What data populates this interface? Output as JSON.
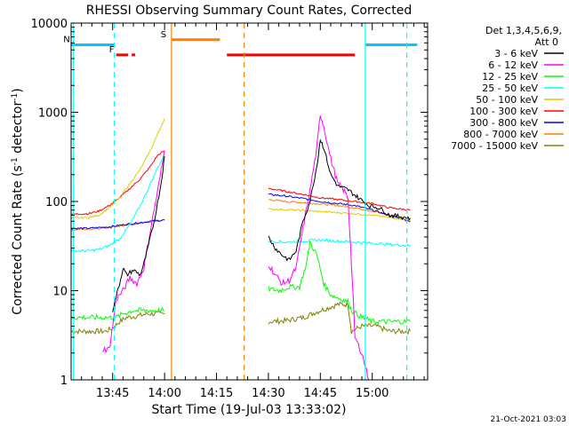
{
  "chart_data": {
    "type": "line",
    "title": "RHESSI Observing Summary Count Rates, Corrected",
    "xlabel": "Start Time (19-Jul-03 13:33:02)",
    "ylabel": "Corrected Count Rate (s",
    "ylabel_sup1": "-1",
    "ylabel_mid": " detector",
    "ylabel_sup2": "-1",
    "ylabel_end": ")",
    "yscale": "log",
    "ylim": [
      1,
      10000
    ],
    "xlim_minutes": [
      0,
      103
    ],
    "x_ticks": [
      {
        "label": "13:45",
        "minute": 12
      },
      {
        "label": "14:00",
        "minute": 27
      },
      {
        "label": "14:15",
        "minute": 42
      },
      {
        "label": "14:30",
        "minute": 57
      },
      {
        "label": "14:45",
        "minute": 72
      },
      {
        "label": "15:00",
        "minute": 87
      }
    ],
    "y_ticks": [
      {
        "label": "1",
        "value": 1
      },
      {
        "label": "10",
        "value": 10
      },
      {
        "label": "100",
        "value": 100
      },
      {
        "label": "1000",
        "value": 1000
      },
      {
        "label": "10000",
        "value": 10000
      }
    ],
    "legend": {
      "header1": "Det 1,3,4,5,6,9,",
      "header2": "Att 0",
      "position": "top-right"
    },
    "series": [
      {
        "name": "3 - 6 keV",
        "color": "#000000",
        "seg1": [
          [
            12,
            6
          ],
          [
            14,
            12
          ],
          [
            15,
            18
          ],
          [
            16,
            15
          ],
          [
            18,
            17
          ],
          [
            20,
            15
          ],
          [
            21,
            20
          ],
          [
            22,
            28
          ],
          [
            24,
            60
          ],
          [
            26,
            160
          ],
          [
            27,
            320
          ]
        ],
        "seg2": [
          [
            57,
            40
          ],
          [
            59,
            30
          ],
          [
            61,
            25
          ],
          [
            63,
            22
          ],
          [
            65,
            28
          ],
          [
            67,
            60
          ],
          [
            69,
            100
          ],
          [
            71,
            250
          ],
          [
            72,
            500
          ],
          [
            73,
            400
          ],
          [
            75,
            200
          ],
          [
            77,
            150
          ],
          [
            79,
            140
          ],
          [
            80,
            135
          ],
          [
            83,
            110
          ],
          [
            86,
            90
          ],
          [
            89,
            85
          ],
          [
            92,
            70
          ],
          [
            95,
            68
          ],
          [
            98,
            65
          ]
        ]
      },
      {
        "name": "6 - 12 keV",
        "color": "#ff00ff",
        "seg1": [
          [
            9,
            2.2
          ],
          [
            11,
            2.2
          ],
          [
            12,
            4
          ],
          [
            13,
            8
          ],
          [
            15,
            10
          ],
          [
            17,
            14
          ],
          [
            19,
            12
          ],
          [
            21,
            18
          ],
          [
            23,
            50
          ],
          [
            25,
            130
          ],
          [
            27,
            370
          ]
        ],
        "seg2": [
          [
            57,
            20
          ],
          [
            59,
            15
          ],
          [
            61,
            12
          ],
          [
            63,
            13
          ],
          [
            65,
            18
          ],
          [
            67,
            50
          ],
          [
            69,
            130
          ],
          [
            71,
            400
          ],
          [
            72,
            950
          ],
          [
            73,
            700
          ],
          [
            75,
            300
          ],
          [
            77,
            160
          ],
          [
            79,
            130
          ],
          [
            80,
            110
          ],
          [
            81,
            20
          ],
          [
            82,
            3
          ],
          [
            84,
            2
          ],
          [
            86,
            1
          ]
        ]
      },
      {
        "name": "12 - 25 keV",
        "color": "#00ff00",
        "seg1": [
          [
            0,
            5
          ],
          [
            5,
            5
          ],
          [
            10,
            5
          ],
          [
            13,
            5
          ],
          [
            15,
            5.5
          ],
          [
            18,
            6
          ],
          [
            20,
            6
          ],
          [
            23,
            6
          ],
          [
            27,
            6
          ]
        ],
        "seg2": [
          [
            57,
            10.5
          ],
          [
            60,
            10
          ],
          [
            63,
            11
          ],
          [
            66,
            11
          ],
          [
            68,
            20
          ],
          [
            69,
            35
          ],
          [
            71,
            25
          ],
          [
            73,
            12
          ],
          [
            75,
            9
          ],
          [
            78,
            8
          ],
          [
            80,
            7.5
          ],
          [
            81,
            6
          ],
          [
            84,
            5
          ],
          [
            87,
            4.5
          ],
          [
            91,
            4.5
          ],
          [
            98,
            4.5
          ]
        ]
      },
      {
        "name": "25 - 50 keV",
        "color": "#00ffff",
        "seg1": [
          [
            0,
            28
          ],
          [
            5,
            28
          ],
          [
            8,
            29
          ],
          [
            11,
            32
          ],
          [
            14,
            38
          ],
          [
            17,
            55
          ],
          [
            20,
            90
          ],
          [
            23,
            160
          ],
          [
            25,
            240
          ],
          [
            27,
            330
          ]
        ],
        "seg2": [
          [
            57,
            36
          ],
          [
            62,
            35
          ],
          [
            67,
            36
          ],
          [
            72,
            37
          ],
          [
            77,
            36
          ],
          [
            82,
            35
          ],
          [
            87,
            34
          ],
          [
            92,
            33
          ],
          [
            98,
            32
          ]
        ]
      },
      {
        "name": "50 - 100 keV",
        "color": "#e6c800",
        "seg1": [
          [
            0,
            65
          ],
          [
            5,
            66
          ],
          [
            8,
            70
          ],
          [
            11,
            85
          ],
          [
            14,
            110
          ],
          [
            17,
            160
          ],
          [
            20,
            230
          ],
          [
            23,
            380
          ],
          [
            25,
            570
          ],
          [
            27,
            850
          ]
        ],
        "seg2": [
          [
            57,
            82
          ],
          [
            62,
            81
          ],
          [
            67,
            79
          ],
          [
            72,
            77
          ],
          [
            77,
            75
          ],
          [
            82,
            73
          ],
          [
            87,
            70
          ],
          [
            92,
            66
          ],
          [
            98,
            62
          ]
        ]
      },
      {
        "name": "100 - 300 keV",
        "color": "#ff0000",
        "seg1": [
          [
            0,
            72
          ],
          [
            5,
            73
          ],
          [
            8,
            78
          ],
          [
            11,
            90
          ],
          [
            14,
            110
          ],
          [
            17,
            140
          ],
          [
            20,
            180
          ],
          [
            23,
            250
          ],
          [
            25,
            330
          ],
          [
            27,
            370
          ]
        ],
        "seg2": [
          [
            57,
            140
          ],
          [
            62,
            130
          ],
          [
            67,
            120
          ],
          [
            72,
            110
          ],
          [
            77,
            105
          ],
          [
            82,
            100
          ],
          [
            87,
            95
          ],
          [
            92,
            85
          ],
          [
            98,
            80
          ]
        ]
      },
      {
        "name": "300 - 800 keV",
        "color": "#0000ff",
        "seg1": [
          [
            0,
            50
          ],
          [
            5,
            50
          ],
          [
            8,
            51
          ],
          [
            11,
            52
          ],
          [
            14,
            54
          ],
          [
            17,
            56
          ],
          [
            20,
            58
          ],
          [
            23,
            60
          ],
          [
            27,
            62
          ]
        ],
        "seg2": [
          [
            57,
            120
          ],
          [
            62,
            115
          ],
          [
            67,
            108
          ],
          [
            72,
            100
          ],
          [
            77,
            95
          ],
          [
            82,
            90
          ],
          [
            87,
            80
          ],
          [
            92,
            70
          ],
          [
            98,
            60
          ]
        ]
      },
      {
        "name": "800 - 7000 keV",
        "color": "#ff8000",
        "seg1": [
          [
            0,
            48
          ],
          [
            5,
            49
          ],
          [
            8,
            50
          ],
          [
            11,
            51
          ],
          [
            14,
            53
          ],
          [
            17,
            55
          ],
          [
            20,
            57
          ],
          [
            23,
            59
          ],
          [
            27,
            62
          ]
        ],
        "seg2": [
          [
            57,
            105
          ],
          [
            62,
            100
          ],
          [
            67,
            97
          ],
          [
            72,
            94
          ],
          [
            77,
            90
          ],
          [
            82,
            85
          ],
          [
            87,
            78
          ],
          [
            92,
            70
          ],
          [
            98,
            62
          ]
        ]
      },
      {
        "name": "7000 - 15000 keV",
        "color": "#808000",
        "seg1": [
          [
            0,
            3.5
          ],
          [
            5,
            3.5
          ],
          [
            10,
            3.5
          ],
          [
            12,
            3.8
          ],
          [
            14,
            4.5
          ],
          [
            16,
            5
          ],
          [
            19,
            5.2
          ],
          [
            22,
            5.5
          ],
          [
            27,
            5.5
          ]
        ],
        "seg2": [
          [
            57,
            4.5
          ],
          [
            62,
            4.6
          ],
          [
            67,
            5
          ],
          [
            72,
            6
          ],
          [
            77,
            7
          ],
          [
            80,
            7
          ],
          [
            81,
            3.5
          ],
          [
            84,
            4
          ],
          [
            88,
            4
          ],
          [
            92,
            3.5
          ],
          [
            98,
            3.5
          ]
        ]
      }
    ],
    "flags": [
      {
        "label": "N",
        "color": "#00c8ff",
        "level": 5700,
        "ranges": [
          [
            0,
            12.5
          ],
          [
            85,
            100
          ]
        ]
      },
      {
        "label": "F",
        "color": "#ff0000",
        "level": 4400,
        "ranges": [
          [
            13,
            16.5
          ],
          [
            17.5,
            18.5
          ],
          [
            45,
            82
          ]
        ]
      },
      {
        "label": "S",
        "color": "#ff8000",
        "level": 6500,
        "ranges": [
          [
            29,
            43
          ]
        ]
      }
    ],
    "vlines": [
      {
        "minute": 0.7,
        "color": "#00ffff",
        "style": "solid"
      },
      {
        "minute": 12.5,
        "color": "#00ffff",
        "style": "dashed"
      },
      {
        "minute": 29,
        "color": "#ff8000",
        "style": "solid"
      },
      {
        "minute": 50,
        "color": "#ff8000",
        "style": "dashed"
      },
      {
        "minute": 85,
        "color": "#00ffff",
        "style": "solid"
      },
      {
        "minute": 97,
        "color": "#00ffff",
        "style": "dashed"
      }
    ]
  },
  "timestamp": "21-Oct-2021 03:03"
}
